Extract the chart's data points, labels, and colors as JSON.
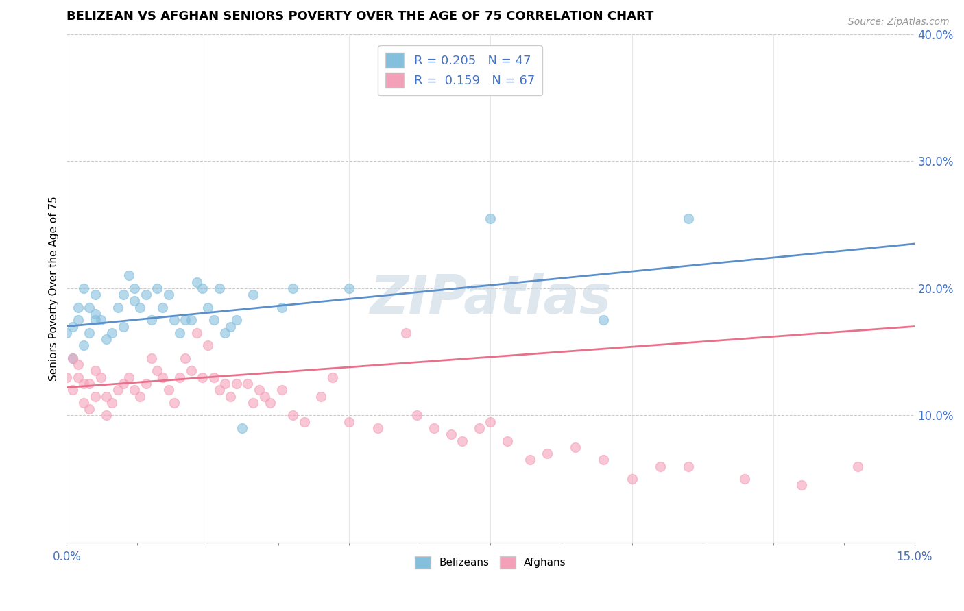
{
  "title": "BELIZEAN VS AFGHAN SENIORS POVERTY OVER THE AGE OF 75 CORRELATION CHART",
  "source": "Source: ZipAtlas.com",
  "ylabel": "Seniors Poverty Over the Age of 75",
  "xlim": [
    0.0,
    0.15
  ],
  "ylim": [
    0.0,
    0.4
  ],
  "belizean_color": "#85BFDE",
  "afghan_color": "#F4A0B8",
  "belizean_line_color": "#5B8FC9",
  "afghan_line_color": "#E8708A",
  "R_belizean": 0.205,
  "N_belizean": 47,
  "R_afghan": 0.159,
  "N_afghan": 67,
  "watermark": "ZIPatlas",
  "label_color": "#4472C4",
  "belizean_line_y0": 0.17,
  "belizean_line_y1": 0.235,
  "afghan_line_y0": 0.122,
  "afghan_line_y1": 0.17,
  "belizean_scatter_x": [
    0.0,
    0.001,
    0.001,
    0.002,
    0.002,
    0.003,
    0.003,
    0.004,
    0.004,
    0.005,
    0.005,
    0.005,
    0.006,
    0.007,
    0.008,
    0.009,
    0.01,
    0.01,
    0.011,
    0.012,
    0.012,
    0.013,
    0.014,
    0.015,
    0.016,
    0.017,
    0.018,
    0.019,
    0.02,
    0.021,
    0.022,
    0.023,
    0.024,
    0.025,
    0.026,
    0.027,
    0.028,
    0.029,
    0.03,
    0.031,
    0.033,
    0.038,
    0.04,
    0.05,
    0.075,
    0.095,
    0.11
  ],
  "belizean_scatter_y": [
    0.165,
    0.17,
    0.145,
    0.175,
    0.185,
    0.155,
    0.2,
    0.165,
    0.185,
    0.175,
    0.18,
    0.195,
    0.175,
    0.16,
    0.165,
    0.185,
    0.195,
    0.17,
    0.21,
    0.19,
    0.2,
    0.185,
    0.195,
    0.175,
    0.2,
    0.185,
    0.195,
    0.175,
    0.165,
    0.175,
    0.175,
    0.205,
    0.2,
    0.185,
    0.175,
    0.2,
    0.165,
    0.17,
    0.175,
    0.09,
    0.195,
    0.185,
    0.2,
    0.2,
    0.255,
    0.175,
    0.255
  ],
  "afghan_scatter_x": [
    0.0,
    0.001,
    0.001,
    0.002,
    0.002,
    0.003,
    0.003,
    0.004,
    0.004,
    0.005,
    0.005,
    0.006,
    0.007,
    0.007,
    0.008,
    0.009,
    0.01,
    0.011,
    0.012,
    0.013,
    0.014,
    0.015,
    0.016,
    0.017,
    0.018,
    0.019,
    0.02,
    0.021,
    0.022,
    0.023,
    0.024,
    0.025,
    0.026,
    0.027,
    0.028,
    0.029,
    0.03,
    0.032,
    0.033,
    0.034,
    0.035,
    0.036,
    0.038,
    0.04,
    0.042,
    0.045,
    0.047,
    0.05,
    0.055,
    0.06,
    0.062,
    0.065,
    0.068,
    0.07,
    0.073,
    0.075,
    0.078,
    0.082,
    0.085,
    0.09,
    0.095,
    0.1,
    0.105,
    0.11,
    0.12,
    0.13,
    0.14
  ],
  "afghan_scatter_y": [
    0.13,
    0.12,
    0.145,
    0.14,
    0.13,
    0.125,
    0.11,
    0.125,
    0.105,
    0.135,
    0.115,
    0.13,
    0.115,
    0.1,
    0.11,
    0.12,
    0.125,
    0.13,
    0.12,
    0.115,
    0.125,
    0.145,
    0.135,
    0.13,
    0.12,
    0.11,
    0.13,
    0.145,
    0.135,
    0.165,
    0.13,
    0.155,
    0.13,
    0.12,
    0.125,
    0.115,
    0.125,
    0.125,
    0.11,
    0.12,
    0.115,
    0.11,
    0.12,
    0.1,
    0.095,
    0.115,
    0.13,
    0.095,
    0.09,
    0.165,
    0.1,
    0.09,
    0.085,
    0.08,
    0.09,
    0.095,
    0.08,
    0.065,
    0.07,
    0.075,
    0.065,
    0.05,
    0.06,
    0.06,
    0.05,
    0.045,
    0.06
  ]
}
